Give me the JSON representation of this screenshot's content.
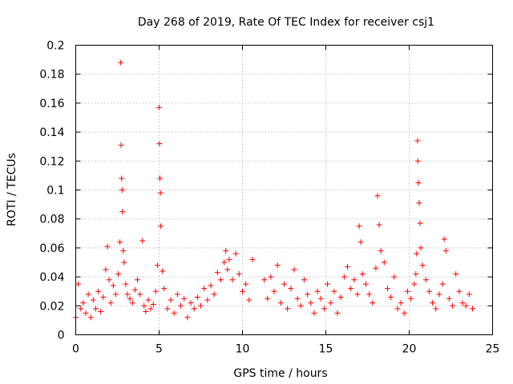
{
  "chart_data": {
    "type": "scatter",
    "title": "Day 268 of 2019, Rate Of TEC Index for receiver csj1",
    "xlabel": "GPS time / hours",
    "ylabel": "ROTI / TECUs",
    "xlim": [
      0,
      25
    ],
    "ylim": [
      0,
      0.2
    ],
    "x_ticks": [
      0,
      5,
      10,
      15,
      20,
      25
    ],
    "x_tick_labels": [
      "0",
      "5",
      "10",
      "15",
      "20",
      "25"
    ],
    "y_ticks": [
      0,
      0.02,
      0.04,
      0.06,
      0.08,
      0.1,
      0.12,
      0.14,
      0.16,
      0.18,
      0.2
    ],
    "y_tick_labels": [
      "0",
      "0.02",
      "0.04",
      "0.06",
      "0.08",
      "0.1",
      "0.12",
      "0.14",
      "0.16",
      "0.18",
      "0.2"
    ],
    "grid": true,
    "marker": "+",
    "marker_color": "#ff0000",
    "series": [
      {
        "name": "ROTI",
        "x": [
          0.0,
          0.15,
          0.3,
          0.45,
          0.6,
          0.75,
          0.9,
          1.05,
          1.2,
          1.35,
          1.5,
          1.65,
          1.8,
          1.9,
          2.0,
          2.1,
          2.25,
          2.4,
          2.55,
          2.65,
          2.7,
          2.72,
          2.75,
          2.78,
          2.8,
          2.85,
          2.9,
          3.0,
          3.1,
          3.25,
          3.4,
          3.55,
          3.7,
          3.85,
          4.0,
          4.1,
          4.2,
          4.35,
          4.5,
          4.65,
          4.8,
          4.9,
          5.0,
          5.02,
          5.05,
          5.08,
          5.1,
          5.2,
          5.3,
          5.5,
          5.7,
          5.9,
          6.1,
          6.3,
          6.5,
          6.7,
          6.9,
          7.1,
          7.3,
          7.5,
          7.7,
          7.9,
          8.1,
          8.3,
          8.5,
          8.7,
          8.9,
          9.0,
          9.1,
          9.2,
          9.4,
          9.6,
          9.8,
          10.0,
          10.2,
          10.4,
          10.6,
          11.3,
          11.5,
          11.7,
          11.9,
          12.1,
          12.3,
          12.5,
          12.7,
          12.9,
          13.1,
          13.3,
          13.5,
          13.7,
          13.9,
          14.1,
          14.3,
          14.5,
          14.7,
          14.9,
          15.1,
          15.3,
          15.5,
          15.7,
          15.9,
          16.1,
          16.3,
          16.5,
          16.7,
          16.9,
          17.0,
          17.1,
          17.2,
          17.4,
          17.6,
          17.8,
          18.0,
          18.1,
          18.2,
          18.3,
          18.5,
          18.7,
          18.9,
          19.1,
          19.3,
          19.5,
          19.7,
          19.9,
          20.1,
          20.3,
          20.4,
          20.45,
          20.5,
          20.52,
          20.55,
          20.6,
          20.65,
          20.7,
          20.8,
          21.0,
          21.2,
          21.4,
          21.6,
          21.8,
          22.0,
          22.1,
          22.2,
          22.4,
          22.6,
          22.8,
          23.0,
          23.2,
          23.4,
          23.6,
          23.8
        ],
        "y": [
          0.012,
          0.035,
          0.018,
          0.022,
          0.015,
          0.028,
          0.012,
          0.024,
          0.018,
          0.03,
          0.016,
          0.026,
          0.045,
          0.061,
          0.038,
          0.022,
          0.034,
          0.028,
          0.042,
          0.064,
          0.188,
          0.131,
          0.108,
          0.1,
          0.085,
          0.058,
          0.05,
          0.035,
          0.028,
          0.025,
          0.022,
          0.031,
          0.038,
          0.028,
          0.065,
          0.02,
          0.016,
          0.024,
          0.018,
          0.021,
          0.03,
          0.048,
          0.157,
          0.132,
          0.108,
          0.098,
          0.075,
          0.044,
          0.032,
          0.018,
          0.024,
          0.015,
          0.028,
          0.02,
          0.025,
          0.012,
          0.022,
          0.018,
          0.026,
          0.02,
          0.032,
          0.024,
          0.034,
          0.028,
          0.043,
          0.038,
          0.05,
          0.058,
          0.045,
          0.052,
          0.038,
          0.056,
          0.042,
          0.03,
          0.035,
          0.024,
          0.052,
          0.038,
          0.025,
          0.04,
          0.03,
          0.048,
          0.022,
          0.035,
          0.018,
          0.032,
          0.045,
          0.025,
          0.02,
          0.038,
          0.028,
          0.022,
          0.015,
          0.03,
          0.025,
          0.018,
          0.035,
          0.022,
          0.03,
          0.015,
          0.026,
          0.04,
          0.047,
          0.032,
          0.038,
          0.028,
          0.075,
          0.064,
          0.042,
          0.035,
          0.028,
          0.022,
          0.046,
          0.096,
          0.076,
          0.058,
          0.05,
          0.032,
          0.026,
          0.04,
          0.018,
          0.022,
          0.015,
          0.03,
          0.025,
          0.035,
          0.042,
          0.056,
          0.134,
          0.12,
          0.105,
          0.091,
          0.077,
          0.06,
          0.048,
          0.038,
          0.03,
          0.022,
          0.018,
          0.028,
          0.035,
          0.066,
          0.058,
          0.025,
          0.02,
          0.042,
          0.03,
          0.022,
          0.02,
          0.028,
          0.018
        ]
      }
    ]
  }
}
